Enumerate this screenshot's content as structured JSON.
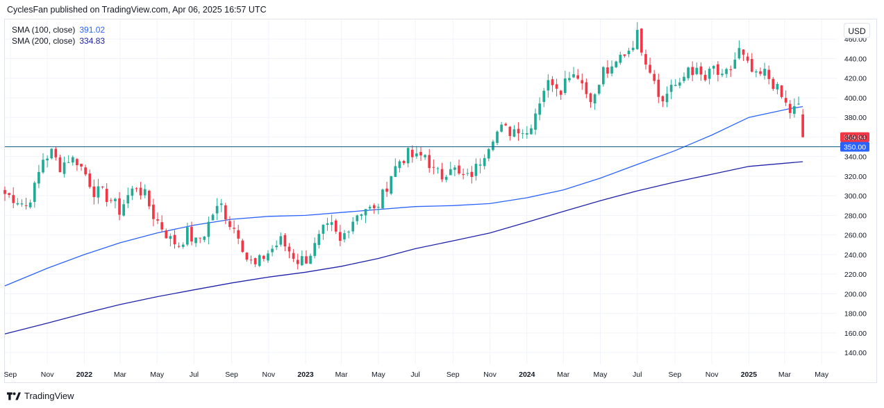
{
  "header": {
    "attribution": "CyclesFan published on TradingView.com, Apr 06, 2025 16:57 UTC"
  },
  "legend": {
    "sma100_label": "SMA (100, close)",
    "sma100_value": "391.02",
    "sma200_label": "SMA (200, close)",
    "sma200_value": "334.83"
  },
  "currency": "USD",
  "footer": {
    "brand": "TradingView"
  },
  "colors": {
    "up": "#22ab94",
    "down": "#f23645",
    "sma100": "#2962ff",
    "sma200": "#1e22aa",
    "hline": "#0d5c8a",
    "grid": "#f0f3fa"
  },
  "chart_data": {
    "type": "candlestick",
    "interval": "weekly",
    "x_range": [
      "2021-08-23",
      "2025-05-26"
    ],
    "ylim": [
      128,
      480
    ],
    "y_ticks": [
      140,
      160,
      180,
      200,
      220,
      240,
      260,
      280,
      300,
      320,
      340,
      360,
      380,
      400,
      420,
      440,
      460
    ],
    "x_ticks": [
      {
        "date": "2021-09-01",
        "label": "Sep"
      },
      {
        "date": "2021-11-01",
        "label": "Nov"
      },
      {
        "date": "2022-01-01",
        "label": "2022",
        "bold": true
      },
      {
        "date": "2022-03-01",
        "label": "Mar"
      },
      {
        "date": "2022-05-01",
        "label": "May"
      },
      {
        "date": "2022-07-01",
        "label": "Jul"
      },
      {
        "date": "2022-09-01",
        "label": "Sep"
      },
      {
        "date": "2022-11-01",
        "label": "Nov"
      },
      {
        "date": "2023-01-01",
        "label": "2023",
        "bold": true
      },
      {
        "date": "2023-03-01",
        "label": "Mar"
      },
      {
        "date": "2023-05-01",
        "label": "May"
      },
      {
        "date": "2023-07-01",
        "label": "Jul"
      },
      {
        "date": "2023-09-01",
        "label": "Sep"
      },
      {
        "date": "2023-11-01",
        "label": "Nov"
      },
      {
        "date": "2024-01-01",
        "label": "2024",
        "bold": true
      },
      {
        "date": "2024-03-01",
        "label": "Mar"
      },
      {
        "date": "2024-05-01",
        "label": "May"
      },
      {
        "date": "2024-07-01",
        "label": "Jul"
      },
      {
        "date": "2024-09-01",
        "label": "Sep"
      },
      {
        "date": "2024-11-01",
        "label": "Nov"
      },
      {
        "date": "2025-01-01",
        "label": "2025",
        "bold": true
      },
      {
        "date": "2025-03-01",
        "label": "Mar"
      },
      {
        "date": "2025-05-01",
        "label": "May"
      }
    ],
    "horizontal_line": {
      "value": 350.0,
      "label": "350.00"
    },
    "last_price": {
      "value": 359.84,
      "label": "359.84"
    },
    "closes": [
      {
        "d": "2021-08-23",
        "c": 302
      },
      {
        "d": "2021-09-13",
        "c": 296
      },
      {
        "d": "2021-09-27",
        "c": 290
      },
      {
        "d": "2021-10-11",
        "c": 308
      },
      {
        "d": "2021-10-25",
        "c": 338
      },
      {
        "d": "2021-11-08",
        "c": 344
      },
      {
        "d": "2021-11-22",
        "c": 330
      },
      {
        "d": "2021-12-06",
        "c": 338
      },
      {
        "d": "2021-12-20",
        "c": 336
      },
      {
        "d": "2022-01-03",
        "c": 322
      },
      {
        "d": "2022-01-17",
        "c": 305
      },
      {
        "d": "2022-01-31",
        "c": 302
      },
      {
        "d": "2022-02-14",
        "c": 296
      },
      {
        "d": "2022-02-28",
        "c": 285
      },
      {
        "d": "2022-03-14",
        "c": 300
      },
      {
        "d": "2022-03-28",
        "c": 310
      },
      {
        "d": "2022-04-11",
        "c": 300
      },
      {
        "d": "2022-04-25",
        "c": 280
      },
      {
        "d": "2022-05-09",
        "c": 268
      },
      {
        "d": "2022-05-23",
        "c": 255
      },
      {
        "d": "2022-06-06",
        "c": 250
      },
      {
        "d": "2022-06-20",
        "c": 262
      },
      {
        "d": "2022-07-04",
        "c": 252
      },
      {
        "d": "2022-07-18",
        "c": 262
      },
      {
        "d": "2022-08-01",
        "c": 282
      },
      {
        "d": "2022-08-15",
        "c": 290
      },
      {
        "d": "2022-08-29",
        "c": 272
      },
      {
        "d": "2022-09-12",
        "c": 262
      },
      {
        "d": "2022-09-26",
        "c": 236
      },
      {
        "d": "2022-10-10",
        "c": 228
      },
      {
        "d": "2022-10-24",
        "c": 238
      },
      {
        "d": "2022-11-07",
        "c": 246
      },
      {
        "d": "2022-11-21",
        "c": 254
      },
      {
        "d": "2022-12-05",
        "c": 244
      },
      {
        "d": "2022-12-19",
        "c": 234
      },
      {
        "d": "2023-01-02",
        "c": 236
      },
      {
        "d": "2023-01-16",
        "c": 248
      },
      {
        "d": "2023-01-30",
        "c": 264
      },
      {
        "d": "2023-02-13",
        "c": 268
      },
      {
        "d": "2023-02-27",
        "c": 252
      },
      {
        "d": "2023-03-13",
        "c": 270
      },
      {
        "d": "2023-03-27",
        "c": 282
      },
      {
        "d": "2023-04-10",
        "c": 288
      },
      {
        "d": "2023-04-24",
        "c": 284
      },
      {
        "d": "2023-05-08",
        "c": 300
      },
      {
        "d": "2023-05-22",
        "c": 322
      },
      {
        "d": "2023-06-05",
        "c": 336
      },
      {
        "d": "2023-06-19",
        "c": 342
      },
      {
        "d": "2023-07-03",
        "c": 338
      },
      {
        "d": "2023-07-17",
        "c": 342
      },
      {
        "d": "2023-07-31",
        "c": 325
      },
      {
        "d": "2023-08-14",
        "c": 320
      },
      {
        "d": "2023-08-28",
        "c": 332
      },
      {
        "d": "2023-09-11",
        "c": 320
      },
      {
        "d": "2023-09-25",
        "c": 318
      },
      {
        "d": "2023-10-09",
        "c": 328
      },
      {
        "d": "2023-10-23",
        "c": 345
      },
      {
        "d": "2023-11-06",
        "c": 362
      },
      {
        "d": "2023-11-20",
        "c": 368
      },
      {
        "d": "2023-12-04",
        "c": 366
      },
      {
        "d": "2023-12-18",
        "c": 370
      },
      {
        "d": "2024-01-01",
        "c": 364
      },
      {
        "d": "2024-01-15",
        "c": 386
      },
      {
        "d": "2024-01-29",
        "c": 410
      },
      {
        "d": "2024-02-12",
        "c": 418
      },
      {
        "d": "2024-02-26",
        "c": 410
      },
      {
        "d": "2024-03-11",
        "c": 426
      },
      {
        "d": "2024-03-25",
        "c": 425
      },
      {
        "d": "2024-04-08",
        "c": 405
      },
      {
        "d": "2024-04-22",
        "c": 400
      },
      {
        "d": "2024-05-06",
        "c": 428
      },
      {
        "d": "2024-05-20",
        "c": 426
      },
      {
        "d": "2024-06-03",
        "c": 442
      },
      {
        "d": "2024-06-17",
        "c": 450
      },
      {
        "d": "2024-07-01",
        "c": 464
      },
      {
        "d": "2024-07-15",
        "c": 440
      },
      {
        "d": "2024-07-29",
        "c": 420
      },
      {
        "d": "2024-08-12",
        "c": 395
      },
      {
        "d": "2024-08-26",
        "c": 415
      },
      {
        "d": "2024-09-09",
        "c": 410
      },
      {
        "d": "2024-09-23",
        "c": 432
      },
      {
        "d": "2024-10-07",
        "c": 425
      },
      {
        "d": "2024-10-21",
        "c": 418
      },
      {
        "d": "2024-11-04",
        "c": 430
      },
      {
        "d": "2024-11-18",
        "c": 418
      },
      {
        "d": "2024-12-02",
        "c": 430
      },
      {
        "d": "2024-12-16",
        "c": 448
      },
      {
        "d": "2024-12-30",
        "c": 432
      },
      {
        "d": "2025-01-13",
        "c": 420
      },
      {
        "d": "2025-01-27",
        "c": 425
      },
      {
        "d": "2025-02-10",
        "c": 415
      },
      {
        "d": "2025-02-24",
        "c": 400
      },
      {
        "d": "2025-03-10",
        "c": 386
      },
      {
        "d": "2025-03-24",
        "c": 390
      },
      {
        "d": "2025-03-31",
        "c": 359.84
      }
    ],
    "series": [
      {
        "name": "SMA (100, close)",
        "last_value": 391.02,
        "points": [
          [
            "2021-08-23",
            208
          ],
          [
            "2021-11-01",
            226
          ],
          [
            "2022-01-01",
            240
          ],
          [
            "2022-03-01",
            252
          ],
          [
            "2022-05-01",
            262
          ],
          [
            "2022-07-01",
            270
          ],
          [
            "2022-09-01",
            276
          ],
          [
            "2022-11-01",
            279
          ],
          [
            "2023-01-01",
            280
          ],
          [
            "2023-03-01",
            283
          ],
          [
            "2023-05-01",
            286
          ],
          [
            "2023-07-01",
            289
          ],
          [
            "2023-09-01",
            290
          ],
          [
            "2023-11-01",
            292
          ],
          [
            "2024-01-01",
            298
          ],
          [
            "2024-03-01",
            306
          ],
          [
            "2024-05-01",
            318
          ],
          [
            "2024-07-01",
            332
          ],
          [
            "2024-09-01",
            346
          ],
          [
            "2024-11-01",
            362
          ],
          [
            "2025-01-01",
            380
          ],
          [
            "2025-03-10",
            389
          ],
          [
            "2025-03-31",
            391.02
          ]
        ]
      },
      {
        "name": "SMA (200, close)",
        "last_value": 334.83,
        "points": [
          [
            "2021-08-23",
            159
          ],
          [
            "2021-11-01",
            170
          ],
          [
            "2022-01-01",
            180
          ],
          [
            "2022-03-01",
            189
          ],
          [
            "2022-05-01",
            197
          ],
          [
            "2022-07-01",
            204
          ],
          [
            "2022-09-01",
            211
          ],
          [
            "2022-11-01",
            217
          ],
          [
            "2023-01-01",
            222
          ],
          [
            "2023-03-01",
            228
          ],
          [
            "2023-05-01",
            236
          ],
          [
            "2023-07-01",
            246
          ],
          [
            "2023-09-01",
            254
          ],
          [
            "2023-11-01",
            262
          ],
          [
            "2024-01-01",
            273
          ],
          [
            "2024-03-01",
            284
          ],
          [
            "2024-05-01",
            295
          ],
          [
            "2024-07-01",
            305
          ],
          [
            "2024-09-01",
            314
          ],
          [
            "2024-11-01",
            322
          ],
          [
            "2025-01-01",
            330
          ],
          [
            "2025-03-31",
            334.83
          ]
        ]
      }
    ]
  }
}
